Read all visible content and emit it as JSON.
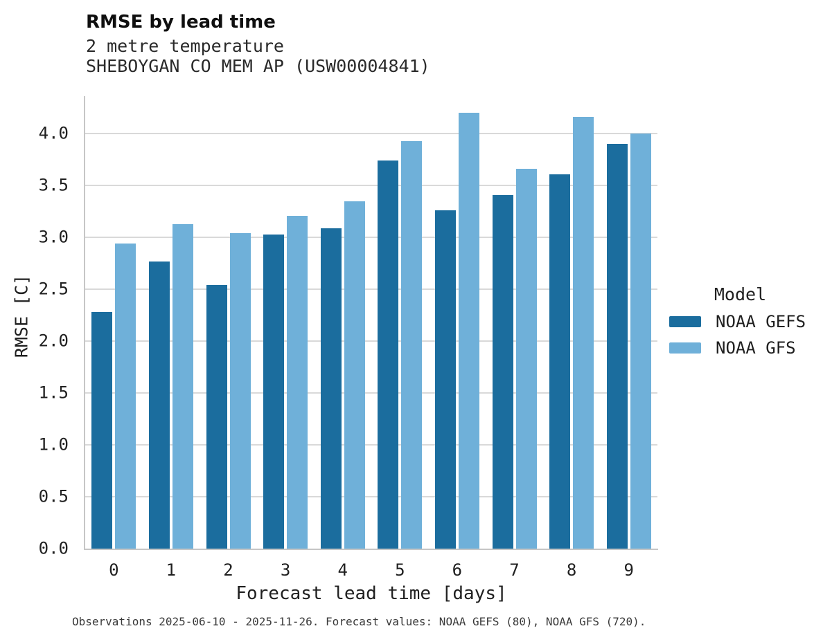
{
  "header": {
    "title": "RMSE by lead time",
    "subtitle_line1": "2 metre temperature",
    "subtitle_line2": "SHEBOYGAN CO MEM AP (USW00004841)"
  },
  "chart_data": {
    "type": "bar",
    "title": "RMSE by lead time",
    "subtitle": [
      "2 metre temperature",
      "SHEBOYGAN CO MEM AP (USW00004841)"
    ],
    "categories": [
      "0",
      "1",
      "2",
      "3",
      "4",
      "5",
      "6",
      "7",
      "8",
      "9"
    ],
    "series": [
      {
        "name": "NOAA GEFS",
        "color": "#1b6d9e",
        "values": [
          2.28,
          2.77,
          2.54,
          3.03,
          3.09,
          3.74,
          3.26,
          3.41,
          3.61,
          3.9
        ]
      },
      {
        "name": "NOAA GFS",
        "color": "#6fb0d9",
        "values": [
          2.94,
          3.13,
          3.04,
          3.21,
          3.35,
          3.93,
          4.2,
          3.66,
          4.16,
          4.0
        ]
      }
    ],
    "xlabel": "Forecast lead time [days]",
    "ylabel": "RMSE [C]",
    "ylim": [
      0,
      4.36
    ],
    "yticks": [
      {
        "value": 0.0,
        "label": "0.0"
      },
      {
        "value": 0.5,
        "label": "0.5"
      },
      {
        "value": 1.0,
        "label": "1.0"
      },
      {
        "value": 1.5,
        "label": "1.5"
      },
      {
        "value": 2.0,
        "label": "2.0"
      },
      {
        "value": 2.5,
        "label": "2.5"
      },
      {
        "value": 3.0,
        "label": "3.0"
      },
      {
        "value": 3.5,
        "label": "3.5"
      },
      {
        "value": 4.0,
        "label": "4.0"
      }
    ],
    "grid": "horizontal",
    "legend_position": "right"
  },
  "legend": {
    "title": "Model",
    "items": [
      {
        "label": "NOAA GEFS",
        "color": "#1b6d9e"
      },
      {
        "label": "NOAA GFS",
        "color": "#6fb0d9"
      }
    ]
  },
  "footer": {
    "caption": "Observations 2025-06-10 - 2025-11-26. Forecast values: NOAA GEFS (80), NOAA GFS (720)."
  },
  "colors": {
    "series_dark": "#1b6d9e",
    "series_light": "#6fb0d9",
    "gridline": "#d9d9d9",
    "spine": "#c6c6c6"
  }
}
